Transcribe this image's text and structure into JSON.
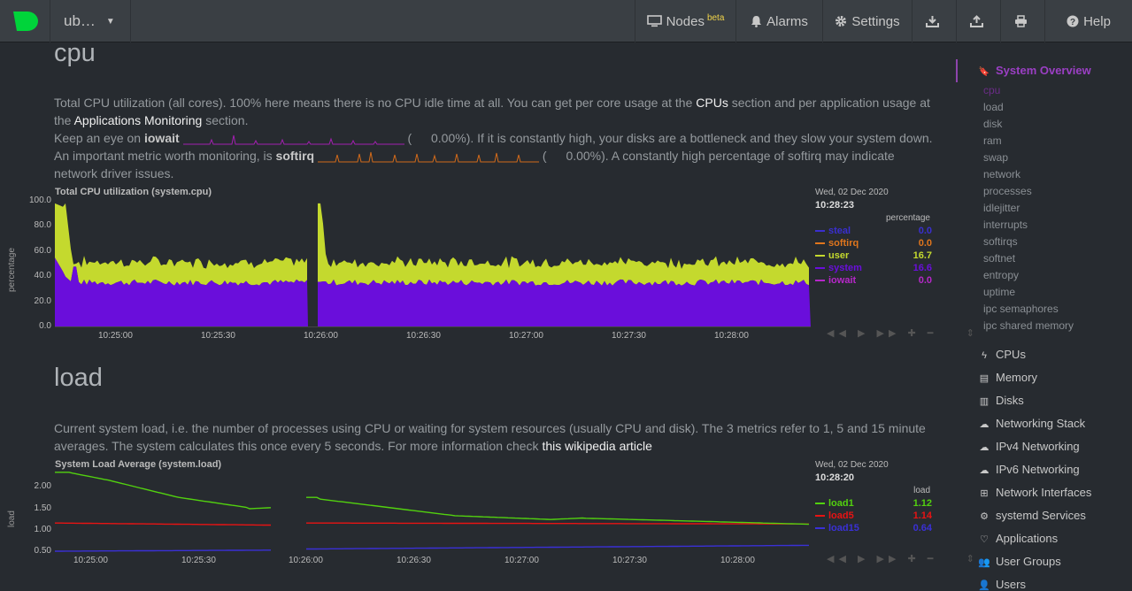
{
  "navbar": {
    "host": "ub…",
    "nodes_label": "Nodes",
    "nodes_badge": "beta",
    "alarms_label": "Alarms",
    "settings_label": "Settings",
    "help_label": "Help"
  },
  "cpu_section": {
    "title": "cpu",
    "p1a": "Total CPU utilization (all cores). 100% here means there is no CPU idle time at all. You can get per core usage at the ",
    "p1_link1": "CPUs",
    "p1b": " section and per application usage at the ",
    "p1_link2": "Applications Monitoring",
    "p1c": " section.",
    "p2a": "Keep an eye on ",
    "p2_bold": "iowait",
    "p2_paren": "(",
    "p2_value": "0.00%).",
    "p2b": " If it is constantly high, your disks are a bottleneck and they slow your system down.",
    "p3a": "An important metric worth monitoring, is ",
    "p3_bold": "softirq",
    "p3_paren": "(",
    "p3_value": "0.00%).",
    "p3b": " A constantly high percentage of softirq may indicate network driver issues."
  },
  "cpu_chart": {
    "title": "Total CPU utilization (system.cpu)",
    "ylabel": "percentage",
    "yticks": [
      "100.0",
      "80.0",
      "60.0",
      "40.0",
      "20.0",
      "0.0"
    ],
    "xticks": [
      "10:25:00",
      "10:25:30",
      "10:26:00",
      "10:26:30",
      "10:27:00",
      "10:27:30",
      "10:28:00"
    ],
    "date": "Wed, 02 Dec 2020",
    "time": "10:28:23",
    "units": "percentage",
    "legend": [
      {
        "name": "steal",
        "value": "0.0",
        "color": "#3a2fcf"
      },
      {
        "name": "softirq",
        "value": "0.0",
        "color": "#e0761d"
      },
      {
        "name": "user",
        "value": "16.7",
        "color": "#c4d92e"
      },
      {
        "name": "system",
        "value": "16.6",
        "color": "#6a0edb"
      },
      {
        "name": "iowait",
        "value": "0.0",
        "color": "#b627c9"
      }
    ]
  },
  "load_section": {
    "title": "load",
    "p1": "Current system load, i.e. the number of processes using CPU or waiting for system resources (usually CPU and disk). The 3 metrics refer to 1, 5 and 15 minute averages. The system calculates this once every 5 seconds. For more information check ",
    "p1_link": "this wikipedia article"
  },
  "load_chart": {
    "title": "System Load Average (system.load)",
    "ylabel": "load",
    "yticks": [
      "2.00",
      "1.50",
      "1.00",
      "0.50"
    ],
    "xticks": [
      "10:25:00",
      "10:25:30",
      "10:26:00",
      "10:26:30",
      "10:27:00",
      "10:27:30",
      "10:28:00"
    ],
    "date": "Wed, 02 Dec 2020",
    "time": "10:28:20",
    "units": "load",
    "legend": [
      {
        "name": "load1",
        "value": "1.12",
        "color": "#52d10f"
      },
      {
        "name": "load5",
        "value": "1.14",
        "color": "#e81313"
      },
      {
        "name": "load15",
        "value": "0.64",
        "color": "#3a30d6"
      }
    ]
  },
  "sidebar": {
    "overview": "System Overview",
    "sub": [
      "cpu",
      "load",
      "disk",
      "ram",
      "swap",
      "network",
      "processes",
      "idlejitter",
      "interrupts",
      "softirqs",
      "softnet",
      "entropy",
      "uptime",
      "ipc semaphores",
      "ipc shared memory"
    ],
    "heads": [
      {
        "label": "CPUs",
        "icon": "bolt-icon"
      },
      {
        "label": "Memory",
        "icon": "memory-icon"
      },
      {
        "label": "Disks",
        "icon": "disk-icon"
      },
      {
        "label": "Networking Stack",
        "icon": "cloud-icon"
      },
      {
        "label": "IPv4 Networking",
        "icon": "cloud-icon"
      },
      {
        "label": "IPv6 Networking",
        "icon": "cloud-icon"
      },
      {
        "label": "Network Interfaces",
        "icon": "sitemap-icon"
      },
      {
        "label": "systemd Services",
        "icon": "cogs-icon"
      },
      {
        "label": "Applications",
        "icon": "heartbeat-icon"
      },
      {
        "label": "User Groups",
        "icon": "users-icon"
      },
      {
        "label": "Users",
        "icon": "user-icon"
      }
    ]
  }
}
